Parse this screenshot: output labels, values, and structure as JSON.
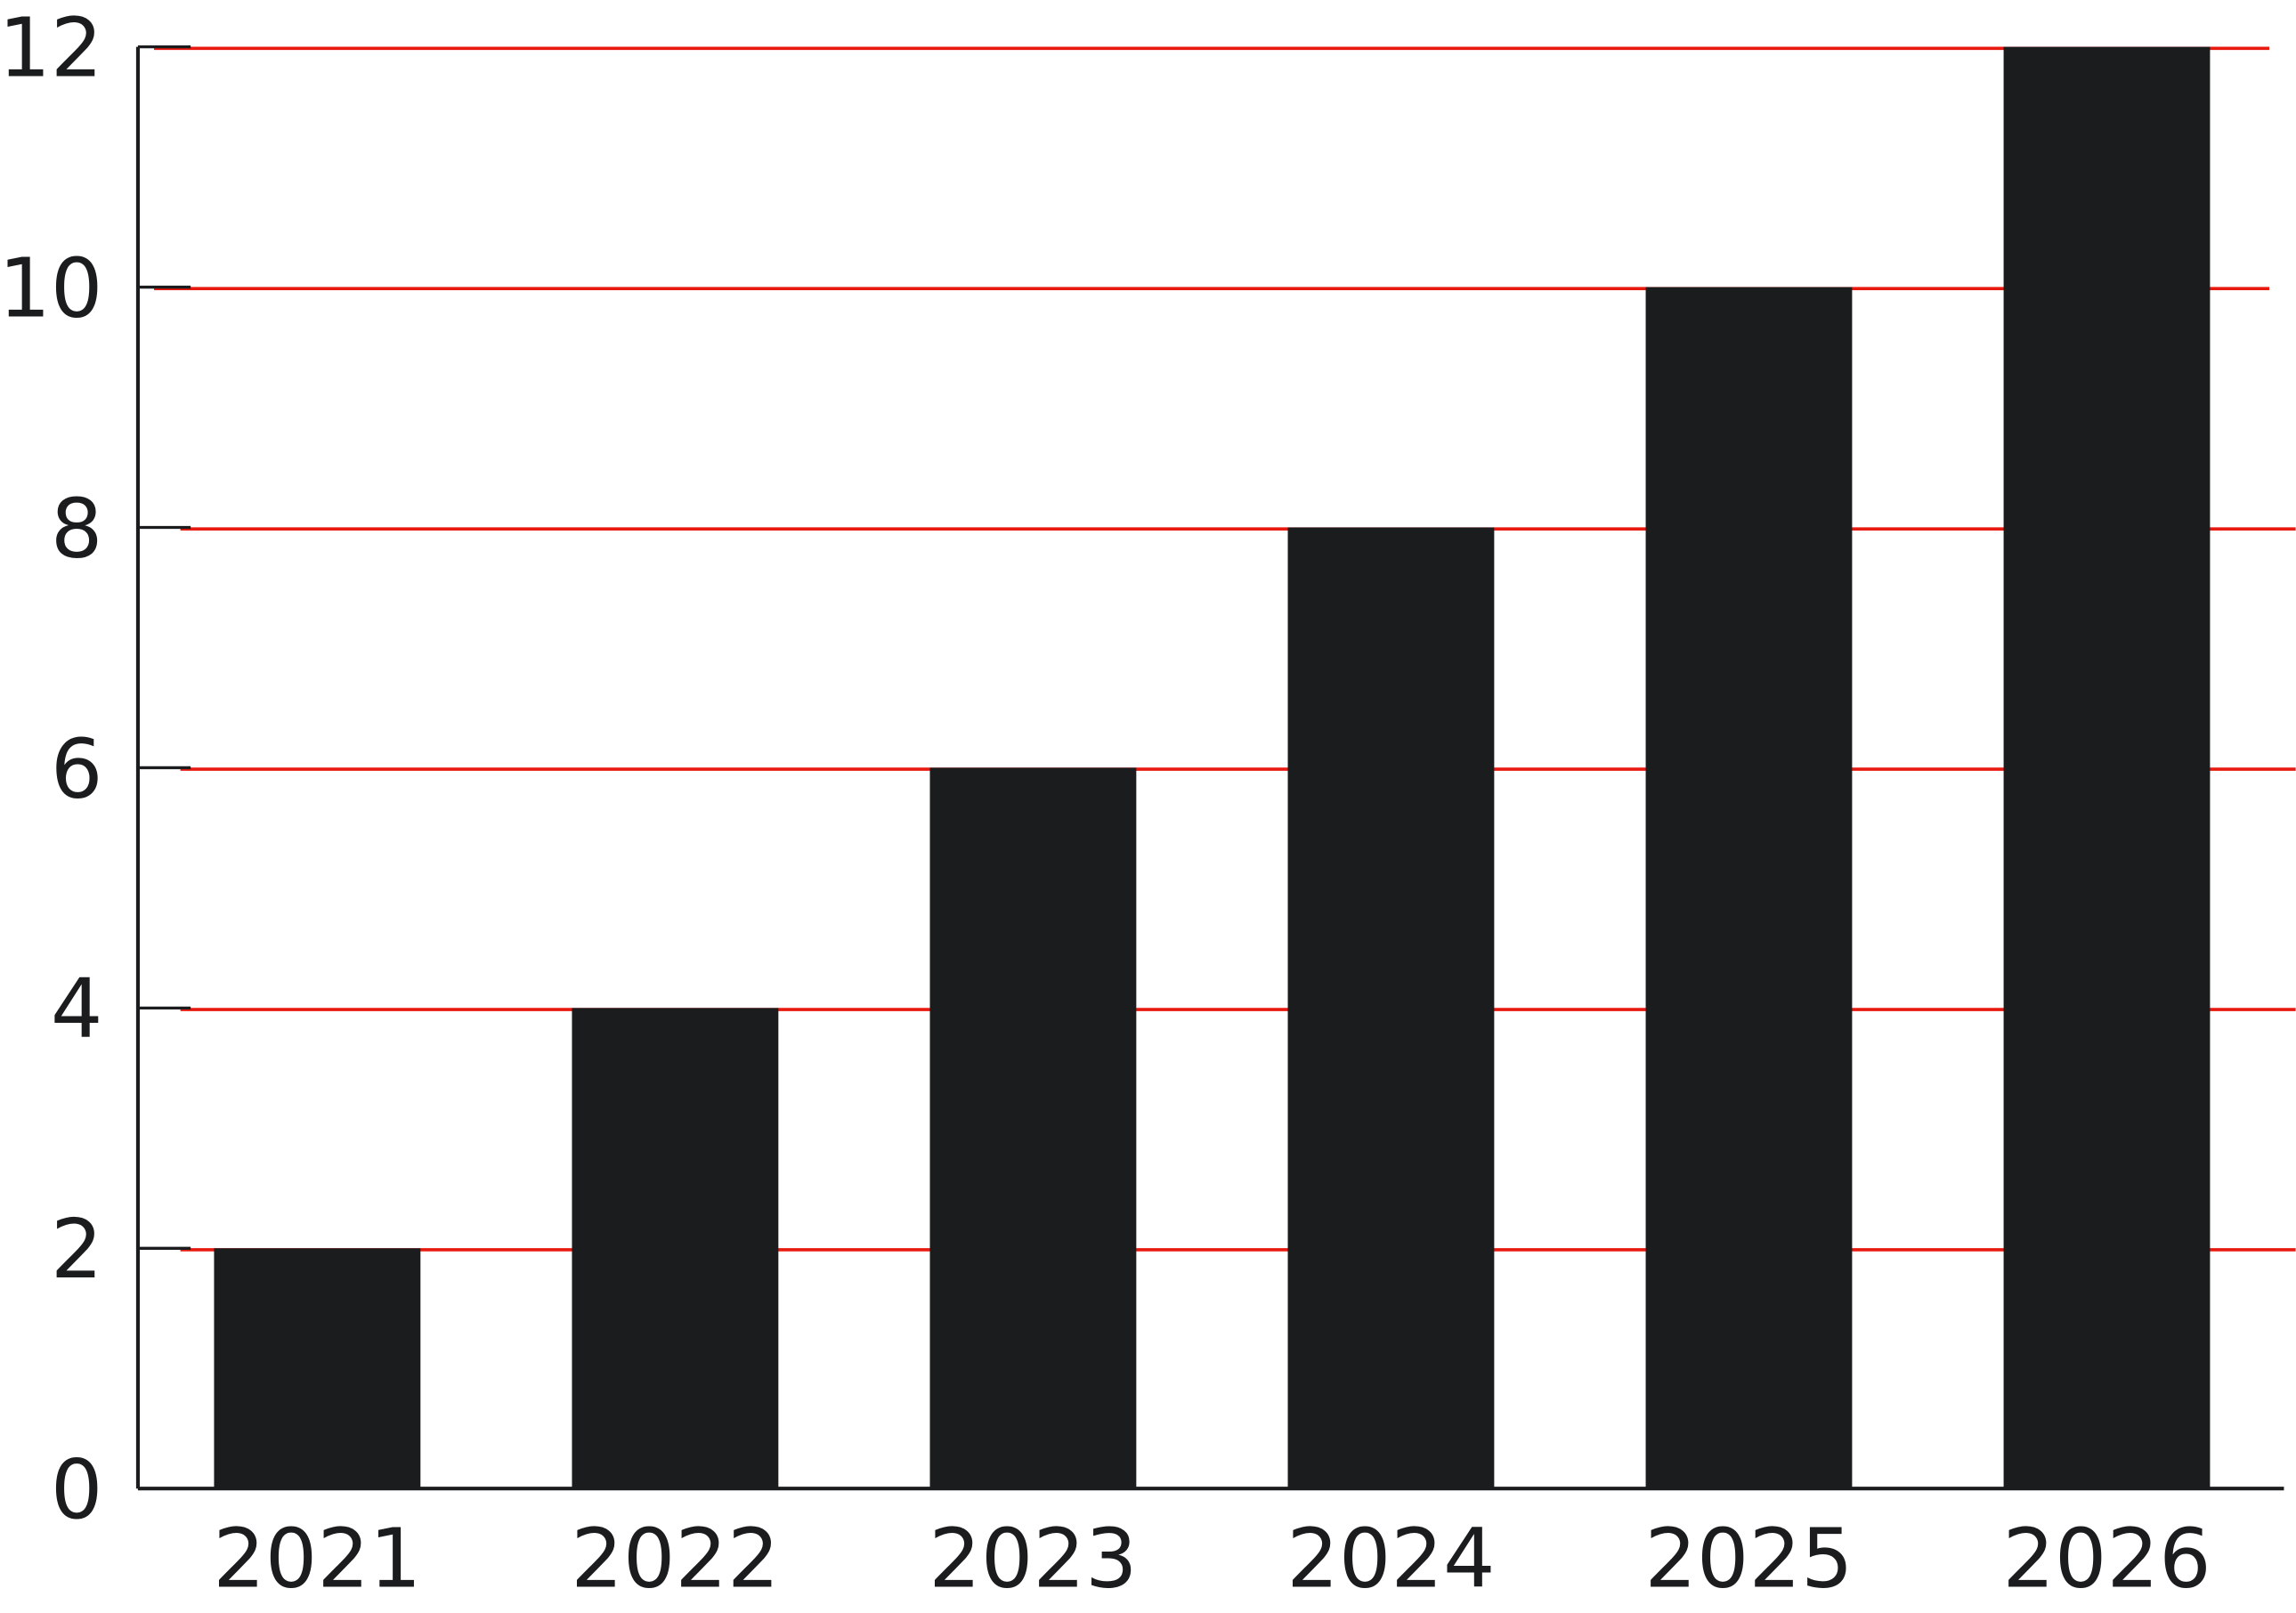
{
  "chart_data": {
    "type": "bar",
    "title": "",
    "xlabel": "",
    "ylabel": "",
    "categories": [
      "2021",
      "2022",
      "2023",
      "2024",
      "2025",
      "2026"
    ],
    "values": [
      2,
      4,
      6,
      8,
      10,
      12
    ],
    "ylim": [
      0,
      12
    ],
    "yticks": [
      "0",
      "2",
      "4",
      "6",
      "8",
      "10",
      "12"
    ],
    "grid": true,
    "legend": "none",
    "colors": {
      "bar": "#1b1c1e",
      "grid": "#e8190f",
      "axis": "#1b1c1e"
    }
  }
}
